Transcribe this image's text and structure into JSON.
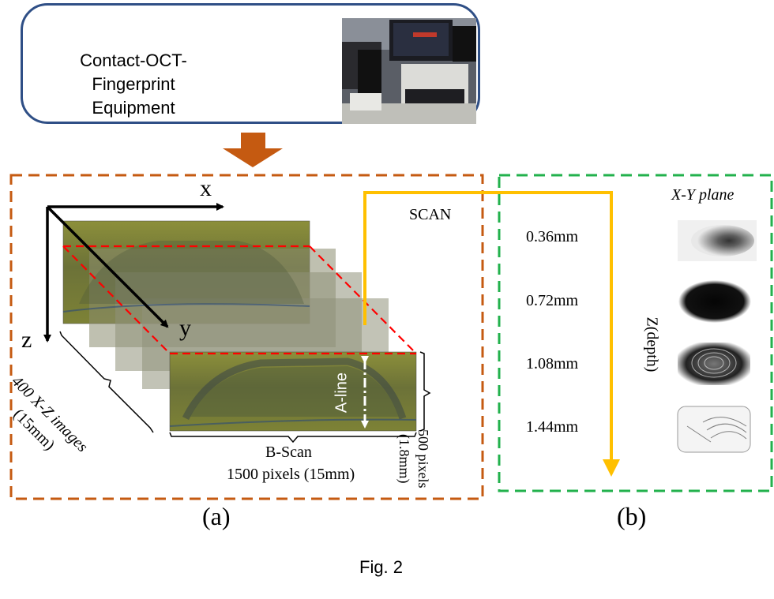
{
  "equipment": {
    "label_line1": "Contact-OCT-Fingerprint",
    "label_line2": "Equipment"
  },
  "panel_a": {
    "axis_x": "x",
    "axis_y": "y",
    "axis_z": "z",
    "scan_label": "SCAN",
    "stack_label_line1": "400 X-Z images",
    "stack_label_line2": "(15mm)",
    "aline_label": "A-line",
    "height_label_line1": "500 pixels",
    "height_label_line2": "(1.8mm)",
    "bscan_label": "B-Scan",
    "width_label": "1500 pixels (15mm)",
    "caption": "(a)"
  },
  "panel_b": {
    "plane_label": "X-Y plane",
    "depth_axis_label": "Z(depth)",
    "depths": [
      "0.36mm",
      "0.72mm",
      "1.08mm",
      "1.44mm"
    ],
    "caption": "(b)"
  },
  "figure_caption": "Fig. 2",
  "colors": {
    "equipment_border": "#2f4f86",
    "arrow": "#c55a11",
    "panel_a_border": "#c55a11",
    "panel_b_border": "#22b14c",
    "scan_path": "#ffc000",
    "section_line": "#ff0000"
  }
}
